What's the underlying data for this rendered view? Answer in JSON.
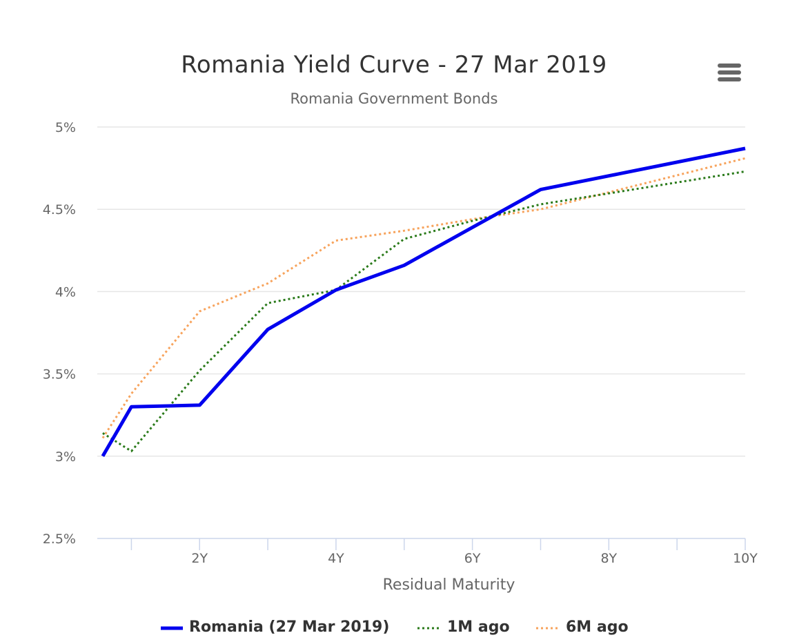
{
  "header": {
    "title": "Romania Yield Curve - 27 Mar 2019",
    "subtitle": "Romania Government Bonds",
    "menu_icon": "hamburger-menu-icon"
  },
  "chart_data": {
    "type": "line",
    "title": "Romania Yield Curve - 27 Mar 2019",
    "subtitle": "Romania Government Bonds",
    "xlabel": "Residual Maturity",
    "ylabel": "",
    "x_unit": "years",
    "xlim": [
      0.5,
      10
    ],
    "ylim": [
      2.5,
      5
    ],
    "x_ticks": [
      2,
      4,
      6,
      8,
      10
    ],
    "x_tick_labels": [
      "2Y",
      "4Y",
      "6Y",
      "8Y",
      "10Y"
    ],
    "y_ticks": [
      2.5,
      3,
      3.5,
      4,
      4.5,
      5
    ],
    "y_tick_labels": [
      "2.5%",
      "3%",
      "3.5%",
      "4%",
      "4.5%",
      "5%"
    ],
    "grid": true,
    "legend_position": "bottom",
    "series": [
      {
        "name": "Romania (27 Mar 2019)",
        "color": "#0000ee",
        "style": "solid",
        "points": [
          [
            0.58,
            3.0
          ],
          [
            1,
            3.3
          ],
          [
            2,
            3.31
          ],
          [
            3,
            3.77
          ],
          [
            4,
            4.01
          ],
          [
            5,
            4.16
          ],
          [
            6,
            4.39
          ],
          [
            7,
            4.62
          ],
          [
            10,
            4.87
          ]
        ]
      },
      {
        "name": "1M ago",
        "color": "#2a7a1a",
        "style": "dotted",
        "points": [
          [
            0.58,
            3.14
          ],
          [
            1,
            3.03
          ],
          [
            2,
            3.52
          ],
          [
            3,
            3.93
          ],
          [
            4,
            4.01
          ],
          [
            5,
            4.32
          ],
          [
            6,
            4.43
          ],
          [
            7,
            4.53
          ],
          [
            10,
            4.73
          ]
        ]
      },
      {
        "name": "6M ago",
        "color": "#f7a35c",
        "style": "dotted",
        "points": [
          [
            0.58,
            3.11
          ],
          [
            1,
            3.38
          ],
          [
            2,
            3.88
          ],
          [
            3,
            4.05
          ],
          [
            4,
            4.31
          ],
          [
            5,
            4.37
          ],
          [
            6,
            4.44
          ],
          [
            7,
            4.5
          ],
          [
            10,
            4.81
          ]
        ]
      }
    ]
  }
}
